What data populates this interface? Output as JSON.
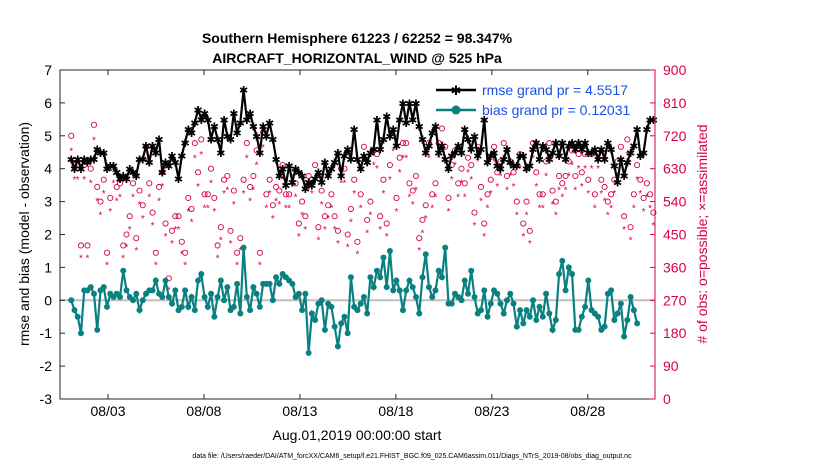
{
  "chart_data": {
    "type": "line",
    "title": "Southern Hemisphere 61223 / 62252 = 98.347%",
    "subtitle": "AIRCRAFT_HORIZONTAL_WIND @ 525 hPa",
    "xlabel": "Aug.01,2019 00:00:00 start",
    "ylabel": "rmse and bias (model - observation)",
    "ylabel_right": "# of obs: o=possible; ×=assimilated",
    "footnote": "data file: /Users/raeder/DAI/ATM_forcXX/CAM6_setup/f.e21.FHIST_BGC.f09_025.CAM6assim.011/Diags_NTrS_2019-08/obs_diag_output.nc",
    "xlim": [
      0.5,
      31.5
    ],
    "ylim": [
      -3,
      7
    ],
    "ylim_right": [
      0,
      900
    ],
    "x_ticks": [
      3,
      8,
      13,
      18,
      23,
      28
    ],
    "x_tick_labels": [
      "08/03",
      "08/08",
      "08/13",
      "08/18",
      "08/23",
      "08/28"
    ],
    "y_ticks": [
      "-3",
      "-2",
      "-1",
      "0",
      "1",
      "2",
      "3",
      "4",
      "5",
      "6",
      "7"
    ],
    "y_ticks_right": [
      "0",
      "90",
      "180",
      "270",
      "360",
      "450",
      "540",
      "630",
      "720",
      "810",
      "900"
    ],
    "legend_location": "top-right",
    "colors": {
      "rmse": "#000000",
      "bias": "#0b8080",
      "obs": "#d8004a",
      "zero_line": "#bfbfbf",
      "legend_text": "#1a50e6",
      "right_axis": "#d8004a"
    },
    "series": [
      {
        "name": "rmse grand pr = 4.5517",
        "values": [
          4.3,
          4.0,
          4.3,
          4.0,
          4.3,
          4.2,
          4.3,
          4.3,
          4.6,
          4.5,
          4.5,
          4.0,
          4.1,
          4.1,
          3.9,
          3.7,
          3.8,
          3.7,
          4.0,
          3.9,
          3.8,
          4.3,
          4.3,
          4.7,
          4.2,
          4.7,
          4.5,
          4.9,
          3.9,
          4.2,
          4.1,
          4.4,
          4.2,
          3.7,
          4.4,
          4.8,
          5.2,
          5.1,
          5.4,
          5.8,
          5.5,
          5.7,
          5.5,
          4.9,
          5.3,
          4.9,
          4.5,
          5.5,
          5.0,
          4.9,
          5.7,
          5.1,
          5.4,
          6.4,
          5.5,
          5.7,
          5.3,
          5.0,
          4.5,
          5.3,
          5.0,
          5.4,
          4.9,
          4.3,
          3.8,
          4.0,
          3.5,
          4.1,
          3.6,
          4.0,
          3.9,
          3.8,
          3.4,
          3.6,
          3.5,
          3.7,
          3.9,
          3.6,
          4.2,
          3.8,
          4.0,
          4.2,
          4.5,
          3.8,
          4.4,
          4.6,
          4.3,
          5.2,
          4.3,
          4.0,
          4.4,
          4.2,
          4.5,
          4.6,
          5.5,
          4.6,
          4.9,
          5.6,
          5.0,
          5.2,
          4.7,
          5.5,
          6.0,
          5.4,
          6.0,
          5.5,
          6.0,
          5.3,
          4.9,
          4.5,
          4.7,
          5.1,
          5.3,
          4.5,
          4.7,
          4.3,
          4.0,
          4.4,
          4.5,
          4.7,
          4.5,
          5.2,
          4.9,
          4.6,
          5.0,
          4.4,
          4.6,
          5.5,
          4.2,
          4.4,
          4.5,
          4.1,
          4.0,
          4.3,
          4.6,
          4.2,
          4.1,
          4.1,
          4.4,
          4.4,
          4.0,
          4.1,
          4.6,
          4.8,
          4.3,
          4.7,
          4.6,
          4.3,
          4.5,
          4.8,
          4.4,
          4.8,
          4.3,
          4.7,
          4.8,
          4.6,
          4.8,
          4.6,
          4.8,
          4.5,
          4.5,
          4.6,
          4.3,
          4.6,
          4.3,
          4.8,
          4.6,
          4.1,
          3.6,
          4.3,
          3.8,
          4.2,
          4.5,
          4.7,
          5.2,
          4.4,
          4.5,
          5.2,
          5.5,
          5.5
        ]
      },
      {
        "name": "bias grand pr = 0.12031",
        "values": [
          0.0,
          -0.3,
          -0.5,
          -1.0,
          0.3,
          0.3,
          0.4,
          0.2,
          -0.9,
          0.3,
          0.4,
          -0.2,
          0.2,
          0.1,
          0.2,
          0.1,
          0.9,
          0.3,
          0.1,
          0.0,
          0.2,
          -0.3,
          0.0,
          0.2,
          0.3,
          0.3,
          0.6,
          0.2,
          0.1,
          0.6,
          0.1,
          -0.1,
          0.3,
          -0.3,
          -0.2,
          0.3,
          -0.2,
          0.1,
          -0.3,
          0.6,
          0.8,
          0.1,
          -0.2,
          0.2,
          -0.5,
          0.1,
          0.6,
          0.0,
          0.4,
          -0.3,
          -0.2,
          0.5,
          -0.4,
          1.6,
          0.1,
          -0.3,
          0.4,
          0.2,
          -0.2,
          0.5,
          0.5,
          0.5,
          0.0,
          0.7,
          0.5,
          0.8,
          0.7,
          0.6,
          0.5,
          0.1,
          0.2,
          -0.3,
          0.2,
          -1.6,
          -0.4,
          -0.6,
          -0.1,
          0.0,
          -0.9,
          -0.1,
          -0.2,
          -0.8,
          -1.4,
          -0.7,
          -0.5,
          -1.0,
          0.7,
          -0.2,
          -0.3,
          -0.1,
          0.1,
          -0.4,
          0.7,
          0.4,
          0.9,
          0.7,
          1.3,
          0.4,
          1.5,
          0.3,
          0.6,
          0.3,
          -0.3,
          0.3,
          0.6,
          0.4,
          0.1,
          -0.4,
          0.7,
          1.4,
          0.4,
          0.1,
          0.3,
          0.9,
          0.7,
          1.6,
          -0.1,
          -0.1,
          0.2,
          0.1,
          0.0,
          0.6,
          0.2,
          0.9,
          0.1,
          -0.4,
          -0.3,
          0.3,
          -0.5,
          -0.1,
          0.3,
          0.2,
          -0.1,
          -0.4,
          0.0,
          0.2,
          -0.1,
          -0.8,
          -0.3,
          -0.7,
          -0.3,
          -0.5,
          0.0,
          -0.6,
          -0.2,
          -0.5,
          0.2,
          -0.4,
          -0.9,
          -0.6,
          0.8,
          1.2,
          0.3,
          1.0,
          0.8,
          -0.9,
          -0.9,
          -0.5,
          -0.2,
          0.6,
          -0.3,
          -0.4,
          -0.5,
          -0.9,
          -0.8,
          0.2,
          0.3,
          -0.6,
          -0.4,
          -0.1,
          -1.1,
          -0.6,
          0.1,
          -0.3,
          -0.7
        ]
      },
      {
        "name": "possible (o)",
        "axis": "right",
        "values": [
          720,
          640,
          640,
          420,
          640,
          420,
          630,
          750,
          580,
          540,
          600,
          400,
          550,
          630,
          580,
          590,
          420,
          450,
          500,
          590,
          440,
          570,
          530,
          690,
          590,
          510,
          400,
          580,
          620,
          480,
          330,
          460,
          500,
          500,
          430,
          400,
          550,
          520,
          700,
          620,
          710,
          560,
          560,
          630,
          550,
          420,
          470,
          600,
          610,
          460,
          570,
          400,
          440,
          600,
          700,
          580,
          610,
          680,
          400,
          730,
          560,
          600,
          530,
          580,
          570,
          640,
          560,
          560,
          620,
          590,
          480,
          540,
          500,
          610,
          600,
          640,
          470,
          570,
          500,
          530,
          560,
          500,
          460,
          630,
          630,
          450,
          520,
          600,
          430,
          560,
          690,
          490,
          540,
          680,
          670,
          500,
          600,
          480,
          640,
          720,
          550,
          660,
          700,
          700,
          590,
          570,
          610,
          440,
          490,
          530,
          700,
          560,
          590,
          700,
          740,
          690,
          550,
          640,
          680,
          590,
          630,
          590,
          660,
          640,
          510,
          690,
          580,
          480,
          560,
          600,
          690,
          620,
          650,
          700,
          610,
          650,
          620,
          540,
          670,
          480,
          540,
          460,
          700,
          620,
          560,
          560,
          650,
          700,
          570,
          540,
          610,
          590,
          610,
          650,
          680,
          610,
          670,
          620,
          670,
          600,
          670,
          560,
          670,
          600,
          580,
          540,
          560,
          600,
          650,
          690,
          500,
          710,
          470,
          560,
          640,
          600,
          550,
          590,
          560,
          510
        ]
      }
    ]
  }
}
